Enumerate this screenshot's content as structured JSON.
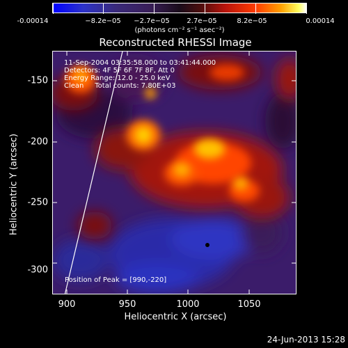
{
  "colorbar": {
    "tick_labels": [
      "-0.00014",
      "−8.2e−05",
      "−2.7e−05",
      "2.7e−05",
      "8.2e−05",
      "0.00014"
    ],
    "units": "(photons cm⁻² s⁻¹ asec⁻²)"
  },
  "title": "Reconstructed RHESSI Image",
  "annotations": {
    "time_range": "11-Sep-2004 03:35:58.000 to 03:41:44.000",
    "detectors": "Detectors: 4F 5F 6F 7F 8F, Att 0",
    "energy": "Energy Range: 12.0 - 25.0 keV",
    "clean": "Clean     Total counts: 7.80E+03",
    "peak": "Position of Peak = [990,-220]"
  },
  "axes": {
    "xlabel": "Heliocentric X (arcsec)",
    "ylabel": "Heliocentric Y (arcsec)",
    "xticks": [
      "900",
      "950",
      "1000",
      "1050"
    ],
    "yticks": [
      "-150",
      "-200",
      "-250",
      "-300"
    ],
    "xlim": [
      888,
      1086
    ],
    "ylim": [
      -322,
      -124
    ]
  },
  "timestamp": "24-Jun-2013 15:28",
  "colors": {
    "background": "#000000",
    "foreground": "#ffffff"
  }
}
